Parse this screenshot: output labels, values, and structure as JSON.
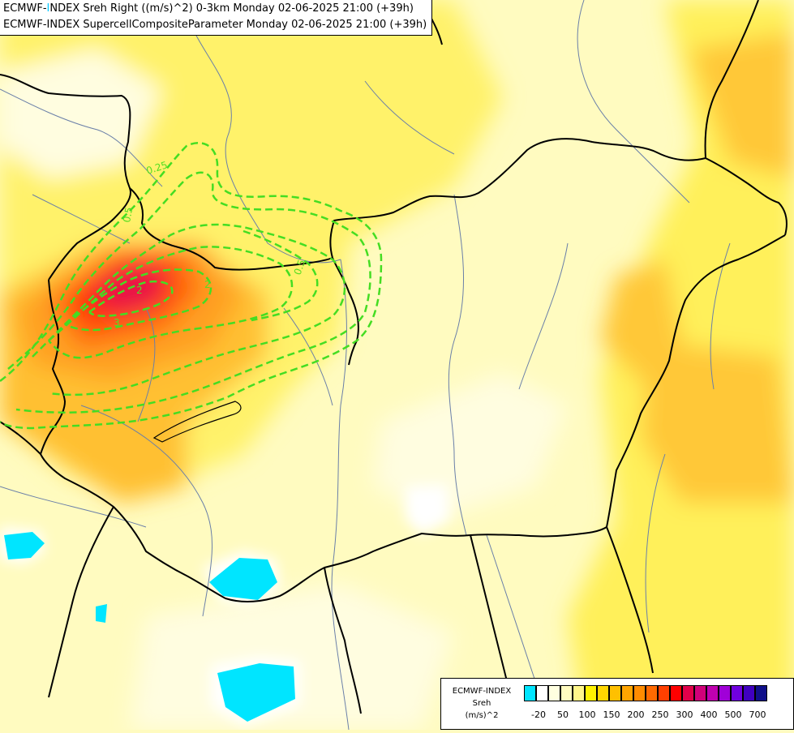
{
  "title": {
    "line1_prefix": "ECMWF-",
    "line1_highlight": "I",
    "line1_rest": "NDEX Sreh Right ((m/s)^2) 0-3km Monday 02-06-2025 21:00 (+39h)",
    "line2": "ECMWF-INDEX SupercellCompositeParameter Monday 02-06-2025 21:00 (+39h)"
  },
  "legend": {
    "title_lines": [
      "ECMWF-INDEX",
      "Sreh",
      "(m/s)^2"
    ],
    "colors": [
      "#00e5ff",
      "#ffffff",
      "#ffffe0",
      "#fffbc0",
      "#fff68a",
      "#fff200",
      "#ffd700",
      "#ffc000",
      "#ffa500",
      "#ff8c00",
      "#ff6a00",
      "#ff4000",
      "#ff0000",
      "#e0004a",
      "#d1007a",
      "#c000b0",
      "#a000d8",
      "#7000e0",
      "#4000c0",
      "#10108a"
    ],
    "tick_labels": [
      "-20",
      "50",
      "100",
      "150",
      "200",
      "250",
      "300",
      "400",
      "500",
      "700"
    ]
  },
  "contour_labels": [
    "0.25",
    "0.5",
    "0.5",
    "2",
    "3",
    "2",
    "0.5"
  ],
  "colors": {
    "contour": "#44dd22",
    "border": "#000000",
    "river": "#6a7fa8"
  }
}
